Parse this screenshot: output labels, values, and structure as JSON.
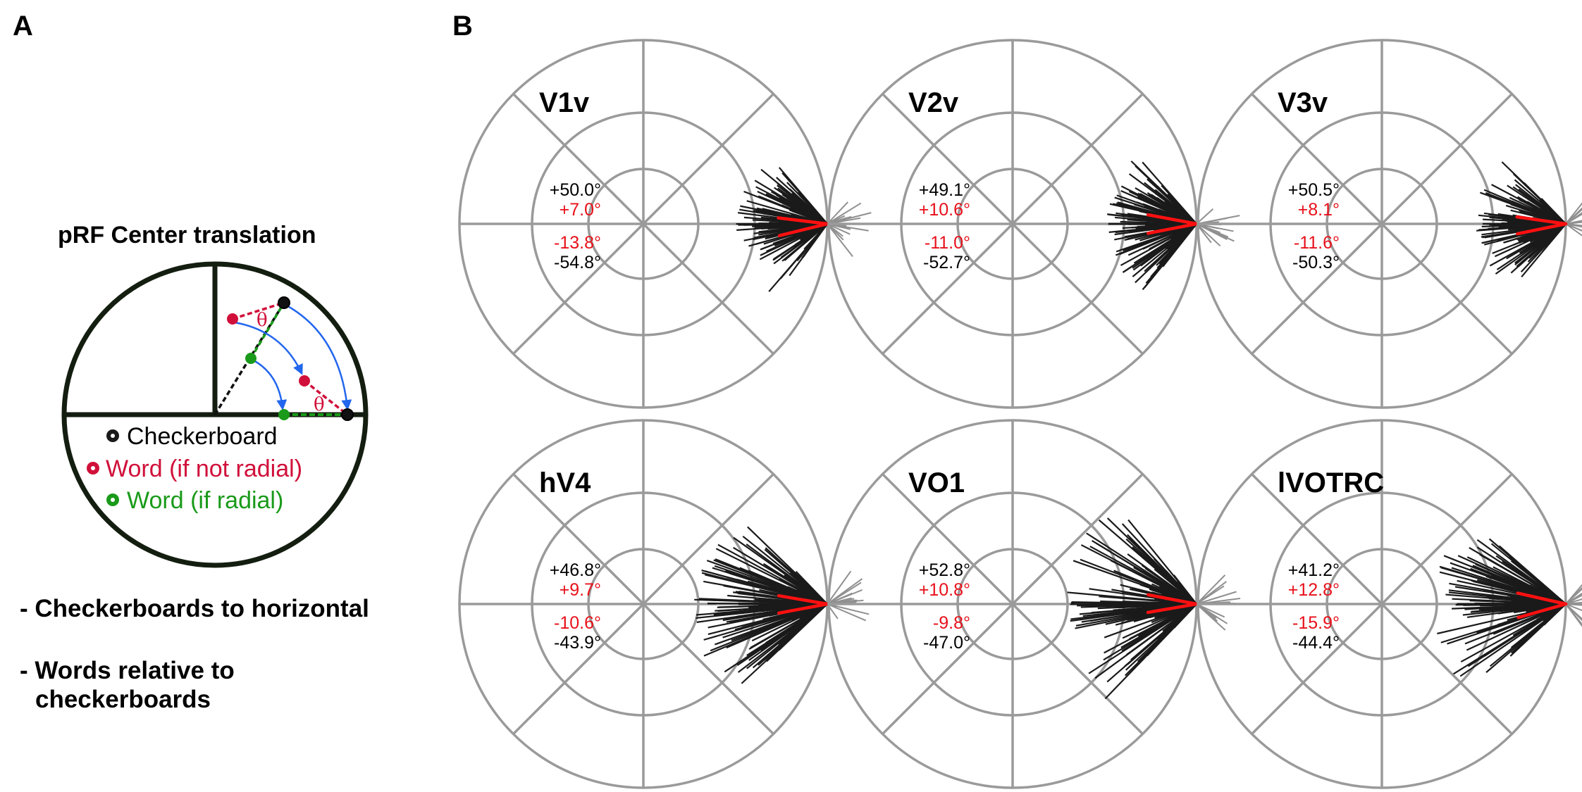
{
  "panel_a": {
    "letter": "A",
    "title": "pRF Center translation",
    "theta": "θ",
    "legend": [
      {
        "label": "Checkerboard",
        "color": "#000000",
        "dot": "#1a1a1a"
      },
      {
        "label": "Word (if not radial)",
        "color": "#d0103a",
        "dot": "#d0103a"
      },
      {
        "label": "Word (if radial)",
        "color": "#1a9a1a",
        "dot": "#1a9a1a"
      }
    ],
    "bullets": [
      {
        "line1": "- Checkerboards to horizontal",
        "line2": ""
      },
      {
        "line1": "- Words relative to",
        "line2": "checkerboards"
      }
    ]
  },
  "panel_b": {
    "letter": "B",
    "colors": {
      "grid": "#9a9a9a",
      "vectors": "#1a1a1a",
      "outliers": "#909090",
      "mean": "#ff1010",
      "red_text": "#e8101a",
      "black_text": "#000000"
    },
    "plots": [
      {
        "name": "V1v",
        "upper_black": "+50.0°",
        "upper_red": "+7.0°",
        "lower_red": "-13.8°",
        "lower_black": "-54.8°",
        "mean_upper_deg": 7.0,
        "mean_lower_deg": -13.8,
        "spread_upper_deg": 50.0,
        "spread_lower_deg": -54.8
      },
      {
        "name": "V2v",
        "upper_black": "+49.1°",
        "upper_red": "+10.6°",
        "lower_red": "-11.0°",
        "lower_black": "-52.7°",
        "mean_upper_deg": 10.6,
        "mean_lower_deg": -11.0,
        "spread_upper_deg": 49.1,
        "spread_lower_deg": -52.7
      },
      {
        "name": "V3v",
        "upper_black": "+50.5°",
        "upper_red": "+8.1°",
        "lower_red": "-11.6°",
        "lower_black": "-50.3°",
        "mean_upper_deg": 8.1,
        "mean_lower_deg": -11.6,
        "spread_upper_deg": 50.5,
        "spread_lower_deg": -50.3
      },
      {
        "name": "hV4",
        "upper_black": "+46.8°",
        "upper_red": "+9.7°",
        "lower_red": "-10.6°",
        "lower_black": "-43.9°",
        "mean_upper_deg": 9.7,
        "mean_lower_deg": -10.6,
        "spread_upper_deg": 46.8,
        "spread_lower_deg": -43.9
      },
      {
        "name": "VO1",
        "upper_black": "+52.8°",
        "upper_red": "+10.8°",
        "lower_red": "-9.8°",
        "lower_black": "-47.0°",
        "mean_upper_deg": 10.8,
        "mean_lower_deg": -9.8,
        "spread_upper_deg": 52.8,
        "spread_lower_deg": -47.0
      },
      {
        "name": "lVOTRC",
        "upper_black": "+41.2°",
        "upper_red": "+12.8°",
        "lower_red": "-15.9°",
        "lower_black": "-44.4°",
        "mean_upper_deg": 12.8,
        "mean_lower_deg": -15.9,
        "spread_upper_deg": 41.2,
        "spread_lower_deg": -44.4
      }
    ]
  }
}
